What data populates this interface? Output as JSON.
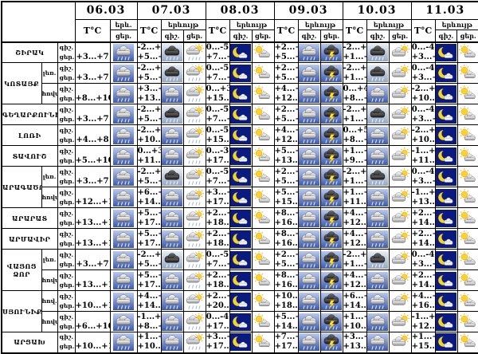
{
  "header": {
    "dates": [
      "06.03",
      "07.03",
      "08.03",
      "09.03",
      "10.03",
      "11.03"
    ],
    "temp_label": "T°C",
    "phenomenon_label": "երևույթ",
    "phenomenon_label_short": "երև.",
    "night_label": "գիշ.",
    "day_label": "ցեր."
  },
  "icon_legend": {
    "rain": "rain-cloud-icon",
    "dark-rain": "dark-rain-cloud-icon",
    "sun-cloud-rain": "sun-cloud-rain-icon",
    "cloud-sun": "cloud-with-sun-icon",
    "sun-cloud": "sun-and-cloud-icon",
    "moon-cloud": "moon-and-cloud-icon",
    "thunder": "thunderstorm-icon"
  },
  "colors": {
    "border": "#000000",
    "background": "#ffffff",
    "icon_sky_top": "#b9c9ee",
    "icon_sky_bottom": "#3c59ab",
    "night_navy": "#0a1a7e",
    "sun_yellow": "#ffd229",
    "bolt_yellow": "#ffe32e",
    "cloud_light": "#8e8e8e",
    "cloud_dark": "#161616"
  },
  "rows": [
    {
      "region": "ՇԻՐԱԿ",
      "region_span": 1,
      "sub": null,
      "temps": [
        [
          "",
          "+3...+7"
        ],
        [
          "-2...+2",
          "+5...+10"
        ],
        [
          "0...-5",
          "+7...+12"
        ],
        [
          "+2...+6",
          "+5...+9"
        ],
        [
          "-2...+2",
          "+1...+5"
        ],
        [
          "0...-4",
          "+3...+7"
        ]
      ],
      "icons": [
        [
          "",
          "rain"
        ],
        [
          "dark-rain",
          "sun-cloud-rain"
        ],
        [
          "moon-cloud",
          "sun-cloud"
        ],
        [
          "rain",
          "thunder"
        ],
        [
          "dark-rain",
          "cloud-sun"
        ],
        [
          "moon-cloud",
          "sun-cloud"
        ]
      ]
    },
    {
      "region": "ԿՈՏԱՅՔ",
      "region_span": 2,
      "sub": "լեռ.",
      "temps": [
        [
          "",
          "+3...+7"
        ],
        [
          "-2...+2",
          "+5...+10"
        ],
        [
          "0...-5",
          "+7...+12"
        ],
        [
          "+2...+6",
          "+5...+9"
        ],
        [
          "-2...+2",
          "+1...+5"
        ],
        [
          "0...-4",
          "+3...+7"
        ]
      ],
      "icons": [
        [
          "",
          "rain"
        ],
        [
          "dark-rain",
          "sun-cloud-rain"
        ],
        [
          "moon-cloud",
          "sun-cloud"
        ],
        [
          "rain",
          "thunder"
        ],
        [
          "dark-rain",
          "cloud-sun"
        ],
        [
          "moon-cloud",
          "sun-cloud"
        ]
      ]
    },
    {
      "region": null,
      "region_span": 0,
      "sub": "հովտ.",
      "temps": [
        [
          "",
          "+8...+10"
        ],
        [
          "+3...+6",
          "+13...+16"
        ],
        [
          "0...+3",
          "+15...+18"
        ],
        [
          "+4...+8",
          "+12...+14"
        ],
        [
          "0...+4",
          "+8...+10"
        ],
        [
          "-2...+2",
          "+10...+12"
        ]
      ],
      "icons": [
        [
          "",
          "rain"
        ],
        [
          "rain",
          "sun-cloud-rain"
        ],
        [
          "moon-cloud",
          "sun-cloud"
        ],
        [
          "rain",
          "thunder"
        ],
        [
          "rain",
          "cloud-sun"
        ],
        [
          "moon-cloud",
          "sun-cloud"
        ]
      ]
    },
    {
      "region": "ԳԵՂԱՐՔՈՒՆԻՔ",
      "region_span": 1,
      "sub": null,
      "temps": [
        [
          "",
          "+3...+7"
        ],
        [
          "-2...+2",
          "+5...+10"
        ],
        [
          "0...-5",
          "+7...+12"
        ],
        [
          "+2...+6",
          "+5...+9"
        ],
        [
          "-2...+2",
          "+1...+5"
        ],
        [
          "0...-4",
          "+3...+7"
        ]
      ],
      "icons": [
        [
          "",
          "rain"
        ],
        [
          "dark-rain",
          "sun-cloud-rain"
        ],
        [
          "moon-cloud",
          "sun-cloud"
        ],
        [
          "rain",
          "thunder"
        ],
        [
          "dark-rain",
          "cloud-sun"
        ],
        [
          "moon-cloud",
          "sun-cloud"
        ]
      ]
    },
    {
      "region": "ԼՈՌԻ",
      "region_span": 1,
      "sub": null,
      "temps": [
        [
          "",
          "+4...+8"
        ],
        [
          "-2...+2",
          "+10...+14"
        ],
        [
          "0...-5",
          "+15...+18"
        ],
        [
          "+4...+9",
          "+12...+15"
        ],
        [
          "0...+5",
          "+8...+11"
        ],
        [
          "-2...+3",
          "+10...+13"
        ]
      ],
      "icons": [
        [
          "",
          "rain"
        ],
        [
          "rain",
          "sun-cloud-rain"
        ],
        [
          "moon-cloud",
          "sun-cloud"
        ],
        [
          "rain",
          "thunder"
        ],
        [
          "rain",
          "cloud-sun"
        ],
        [
          "moon-cloud",
          "sun-cloud"
        ]
      ]
    },
    {
      "region": "ՏԱՎՈՒՇ",
      "region_span": 1,
      "sub": null,
      "temps": [
        [
          "",
          "+5...+10"
        ],
        [
          "0...+3",
          "+11...+16"
        ],
        [
          "0...-3",
          "+17...+20"
        ],
        [
          "+5...+10",
          "+13...+17"
        ],
        [
          "+1...+6",
          "+9...+13"
        ],
        [
          "-1...+4",
          "+11...+15"
        ]
      ],
      "icons": [
        [
          "",
          "rain"
        ],
        [
          "rain",
          "sun-cloud-rain"
        ],
        [
          "moon-cloud",
          "sun-cloud"
        ],
        [
          "rain",
          "thunder"
        ],
        [
          "rain",
          "cloud-sun"
        ],
        [
          "moon-cloud",
          "sun-cloud"
        ]
      ]
    },
    {
      "region": "ԱՐԱԳԱԾՈՏՆ",
      "region_span": 2,
      "sub": "լեռ.",
      "temps": [
        [
          "",
          "+3...+7"
        ],
        [
          "-2...+2",
          "+5...+10"
        ],
        [
          "0...-5",
          "+7...+12"
        ],
        [
          "+2...+6",
          "+5...+9"
        ],
        [
          "-2...+2",
          "+1...+5"
        ],
        [
          "0...-4",
          "+3...+7"
        ]
      ],
      "icons": [
        [
          "",
          "rain"
        ],
        [
          "dark-rain",
          "sun-cloud-rain"
        ],
        [
          "moon-cloud",
          "sun-cloud"
        ],
        [
          "rain",
          "thunder"
        ],
        [
          "dark-rain",
          "cloud-sun"
        ],
        [
          "moon-cloud",
          "sun-cloud"
        ]
      ]
    },
    {
      "region": null,
      "region_span": 0,
      "sub": "հովտ.",
      "temps": [
        [
          "",
          "+12...+15"
        ],
        [
          "+6...+8",
          "+14...+17"
        ],
        [
          "+3...+5",
          "+17...+20"
        ],
        [
          "+5...+10",
          "+15...+18"
        ],
        [
          "+1...+6",
          "+11...+14"
        ],
        [
          "-1...+4",
          "+13...+16"
        ]
      ],
      "icons": [
        [
          "",
          "rain"
        ],
        [
          "rain",
          "sun-cloud-rain"
        ],
        [
          "moon-cloud",
          "sun-cloud"
        ],
        [
          "rain",
          "thunder"
        ],
        [
          "rain",
          "cloud-sun"
        ],
        [
          "moon-cloud",
          "sun-cloud"
        ]
      ]
    },
    {
      "region": "ԱՐԱՐԱՏ",
      "region_span": 1,
      "sub": null,
      "temps": [
        [
          "",
          "+13...+16"
        ],
        [
          "+5...+10",
          "+17...+19"
        ],
        [
          "+2...+7",
          "+18...+21"
        ],
        [
          "+8...+13",
          "+16...+19"
        ],
        [
          "+4...+9",
          "+12...+15"
        ],
        [
          "+2...+7",
          "+14...+17"
        ]
      ],
      "icons": [
        [
          "",
          "rain"
        ],
        [
          "rain",
          "sun-cloud-rain"
        ],
        [
          "moon-cloud",
          "sun-cloud"
        ],
        [
          "rain",
          "thunder"
        ],
        [
          "rain",
          "cloud-sun"
        ],
        [
          "moon-cloud",
          "sun-cloud"
        ]
      ]
    },
    {
      "region": "ԱՐՄԱՎԻՐ",
      "region_span": 1,
      "sub": null,
      "temps": [
        [
          "",
          "+13...+16"
        ],
        [
          "+5...+10",
          "+17...+19"
        ],
        [
          "+2...+7",
          "+18...+21"
        ],
        [
          "+8...+13",
          "+16...+19"
        ],
        [
          "+4...+9",
          "+12...+15"
        ],
        [
          "+2...+7",
          "+14...+17"
        ]
      ],
      "icons": [
        [
          "",
          "rain"
        ],
        [
          "rain",
          "sun-cloud-rain"
        ],
        [
          "moon-cloud",
          "sun-cloud"
        ],
        [
          "rain",
          "thunder"
        ],
        [
          "rain",
          "cloud-sun"
        ],
        [
          "moon-cloud",
          "sun-cloud"
        ]
      ]
    },
    {
      "region": "ՎԱՅՈՑ ՁՈՐ",
      "region_span": 2,
      "sub": "լեռ.",
      "temps": [
        [
          "",
          "+3...+7"
        ],
        [
          "-2...+2",
          "+5...+10"
        ],
        [
          "0...-5",
          "+7...+12"
        ],
        [
          "+2...+6",
          "+5...+9"
        ],
        [
          "-2...+2",
          "+1...+5"
        ],
        [
          "0...-4",
          "+3...+7"
        ]
      ],
      "icons": [
        [
          "",
          "rain"
        ],
        [
          "dark-rain",
          "sun-cloud-rain"
        ],
        [
          "moon-cloud",
          "sun-cloud"
        ],
        [
          "rain",
          "thunder"
        ],
        [
          "dark-rain",
          "cloud-sun"
        ],
        [
          "moon-cloud",
          "sun-cloud"
        ]
      ]
    },
    {
      "region": null,
      "region_span": 0,
      "sub": "հովտ.",
      "temps": [
        [
          "",
          "+13...+16"
        ],
        [
          "+5...+10",
          "+17...+19"
        ],
        [
          "+2...+7",
          "+18...+21"
        ],
        [
          "+8...+13",
          "+16...+19"
        ],
        [
          "+4...+9",
          "+12...+15"
        ],
        [
          "+2...+7",
          "+14...+17"
        ]
      ],
      "icons": [
        [
          "",
          "rain"
        ],
        [
          "rain",
          "sun-cloud-rain"
        ],
        [
          "moon-cloud",
          "sun-cloud"
        ],
        [
          "rain",
          "thunder"
        ],
        [
          "rain",
          "cloud-sun"
        ],
        [
          "moon-cloud",
          "sun-cloud"
        ]
      ]
    },
    {
      "region": "ՍՅՈՒՆԻՔ",
      "region_span": 2,
      "sub": "հով.",
      "temps": [
        [
          "",
          "+10...+14"
        ],
        [
          "+4...+8",
          "+14...+18"
        ],
        [
          "+2...+5",
          "+20...+24"
        ],
        [
          "+10...+14",
          "+18...+23"
        ],
        [
          "+6...+10",
          "+14...+19"
        ],
        [
          "+4...+8",
          "+16...+21"
        ]
      ],
      "icons": [
        [
          "",
          "rain"
        ],
        [
          "rain",
          "sun-cloud-rain"
        ],
        [
          "moon-cloud",
          "sun-cloud"
        ],
        [
          "rain",
          "thunder"
        ],
        [
          "rain",
          "cloud-sun"
        ],
        [
          "moon-cloud",
          "sun-cloud"
        ]
      ]
    },
    {
      "region": null,
      "region_span": 0,
      "sub": "հովտ.",
      "temps": [
        [
          "",
          "+6...+10"
        ],
        [
          "-1...+2",
          "+8...+13"
        ],
        [
          "0...-4",
          "+17...+20"
        ],
        [
          "+5...+10",
          "+14...+18"
        ],
        [
          "+1...+6",
          "+10...+14"
        ],
        [
          "-1...+4",
          "+12...+16"
        ]
      ],
      "icons": [
        [
          "",
          "rain"
        ],
        [
          "rain",
          "sun-cloud-rain"
        ],
        [
          "moon-cloud",
          "sun-cloud"
        ],
        [
          "rain",
          "thunder"
        ],
        [
          "rain",
          "cloud-sun"
        ],
        [
          "moon-cloud",
          "sun-cloud"
        ]
      ]
    },
    {
      "region": "ԱՐՑԱԽ",
      "region_span": 1,
      "sub": null,
      "temps": [
        [
          "",
          "+10...+15"
        ],
        [
          "+1...+4",
          "+10...+15"
        ],
        [
          "+3...+6",
          "+17...+21"
        ],
        [
          "+7...+12",
          "+17...+21"
        ],
        [
          "+3...+8",
          "+13...+18"
        ],
        [
          "+1...+6",
          "+15...+20"
        ]
      ],
      "icons": [
        [
          "",
          "rain"
        ],
        [
          "rain",
          "sun-cloud-rain"
        ],
        [
          "moon-cloud",
          "sun-cloud"
        ],
        [
          "rain",
          "thunder"
        ],
        [
          "rain",
          "cloud-sun"
        ],
        [
          "moon-cloud",
          "sun-cloud"
        ]
      ]
    }
  ]
}
